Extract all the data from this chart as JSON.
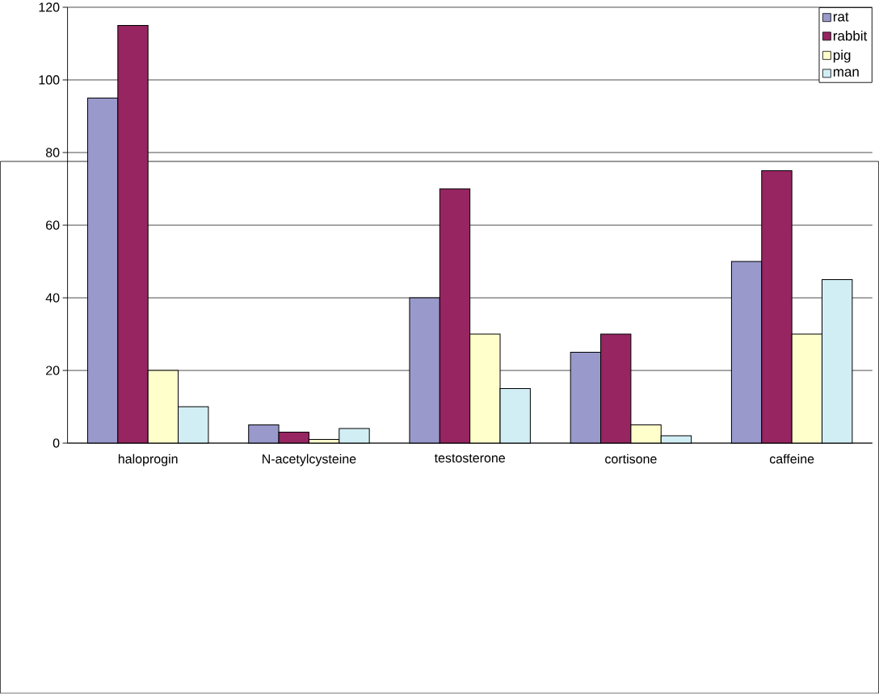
{
  "chart_data": {
    "type": "bar",
    "categories": [
      "haloprogin",
      "N-acetylcysteine",
      "testosterone",
      "cortisone",
      "caffeine"
    ],
    "series": [
      {
        "name": "rat",
        "color": "#9999cc",
        "values": [
          95,
          5,
          40,
          25,
          50
        ]
      },
      {
        "name": "rabbit",
        "color": "#962561",
        "values": [
          115,
          3,
          70,
          30,
          75
        ]
      },
      {
        "name": "pig",
        "color": "#ffffcc",
        "values": [
          20,
          1,
          30,
          5,
          30
        ]
      },
      {
        "name": "man",
        "color": "#d2eef5",
        "values": [
          10,
          4,
          15,
          2,
          45
        ]
      }
    ],
    "ylim": [
      0,
      120
    ],
    "yticks": [
      0,
      20,
      40,
      60,
      80,
      100,
      120
    ],
    "grid": "y",
    "legend": "top right"
  }
}
